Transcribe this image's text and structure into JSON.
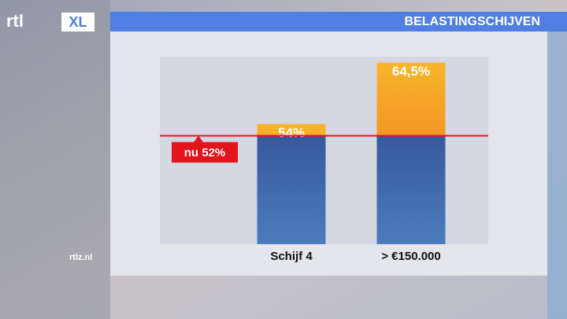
{
  "brand": {
    "logo": "rtl",
    "logo_suffix": "XL",
    "site": "rtlz.nl"
  },
  "chart_data": {
    "type": "bar",
    "title": "BELASTINGSCHIJVEN",
    "categories": [
      "Schijf 4",
      "> €150.000"
    ],
    "values": [
      54,
      64.5
    ],
    "value_labels": [
      "54%",
      "64,5%"
    ],
    "color": "#f39a1e",
    "base_color": "#3f6aad",
    "reference": {
      "value": 52,
      "label": "nu 52%",
      "color": "#e3141b"
    },
    "ylim": [
      33.5,
      65.5
    ]
  }
}
